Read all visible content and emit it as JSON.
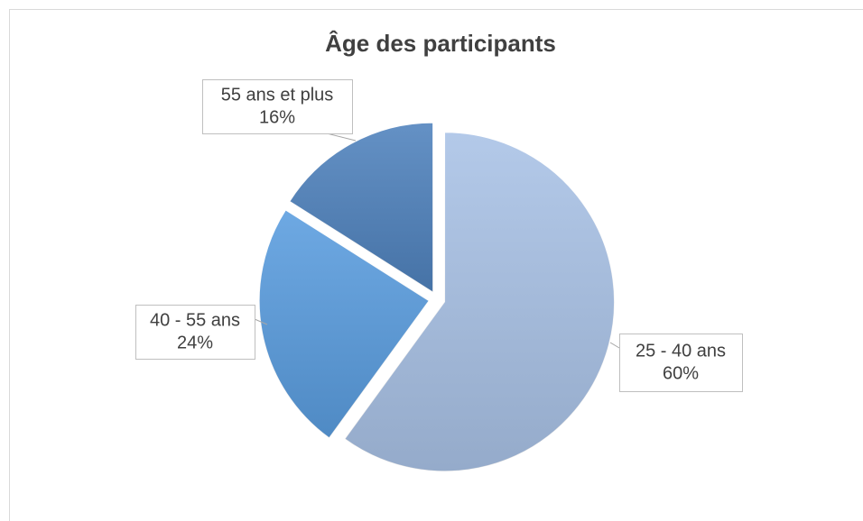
{
  "chart_data": {
    "type": "pie",
    "title": "Âge des participants",
    "categories": [
      "25 - 40 ans",
      "40 - 55 ans",
      "55 ans et plus"
    ],
    "values": [
      60,
      24,
      16
    ],
    "value_labels": [
      "60%",
      "24%",
      "16%"
    ],
    "colors": [
      "#a9c2e6",
      "#5a9ddf",
      "#4f82bd"
    ],
    "exploded": true
  }
}
